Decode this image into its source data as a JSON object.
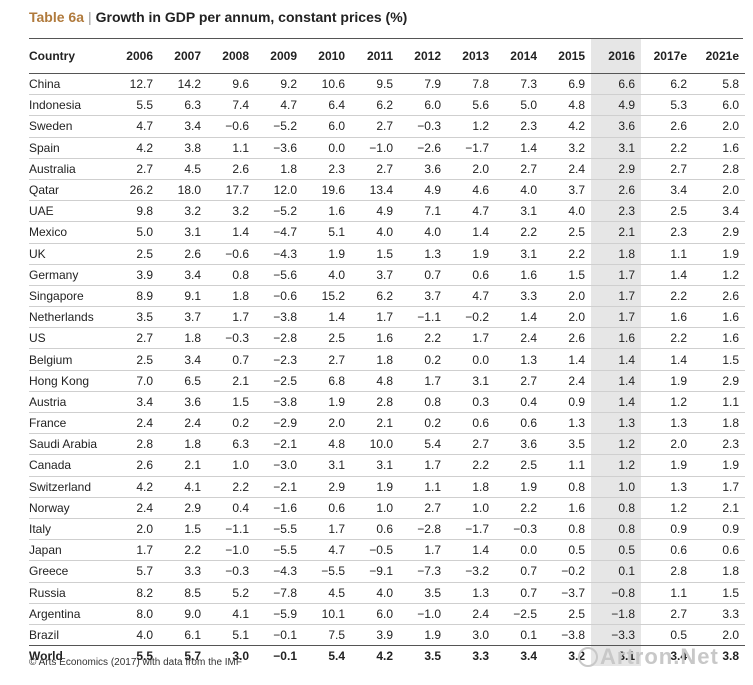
{
  "title": {
    "tag": "Table 6a",
    "sep": "|",
    "main": "Growth in GDP per annum, constant prices (%)"
  },
  "table": {
    "columns": [
      "Country",
      "2006",
      "2007",
      "2008",
      "2009",
      "2010",
      "2011",
      "2012",
      "2013",
      "2014",
      "2015",
      "2016",
      "2017e",
      "2021e"
    ],
    "highlight_column": "2016",
    "highlight_color": "#e6e6e6",
    "rows": [
      [
        "China",
        "12.7",
        "14.2",
        "9.6",
        "9.2",
        "10.6",
        "9.5",
        "7.9",
        "7.8",
        "7.3",
        "6.9",
        "6.6",
        "6.2",
        "5.8"
      ],
      [
        "Indonesia",
        "5.5",
        "6.3",
        "7.4",
        "4.7",
        "6.4",
        "6.2",
        "6.0",
        "5.6",
        "5.0",
        "4.8",
        "4.9",
        "5.3",
        "6.0"
      ],
      [
        "Sweden",
        "4.7",
        "3.4",
        "−0.6",
        "−5.2",
        "6.0",
        "2.7",
        "−0.3",
        "1.2",
        "2.3",
        "4.2",
        "3.6",
        "2.6",
        "2.0"
      ],
      [
        "Spain",
        "4.2",
        "3.8",
        "1.1",
        "−3.6",
        "0.0",
        "−1.0",
        "−2.6",
        "−1.7",
        "1.4",
        "3.2",
        "3.1",
        "2.2",
        "1.6"
      ],
      [
        "Australia",
        "2.7",
        "4.5",
        "2.6",
        "1.8",
        "2.3",
        "2.7",
        "3.6",
        "2.0",
        "2.7",
        "2.4",
        "2.9",
        "2.7",
        "2.8"
      ],
      [
        "Qatar",
        "26.2",
        "18.0",
        "17.7",
        "12.0",
        "19.6",
        "13.4",
        "4.9",
        "4.6",
        "4.0",
        "3.7",
        "2.6",
        "3.4",
        "2.0"
      ],
      [
        "UAE",
        "9.8",
        "3.2",
        "3.2",
        "−5.2",
        "1.6",
        "4.9",
        "7.1",
        "4.7",
        "3.1",
        "4.0",
        "2.3",
        "2.5",
        "3.4"
      ],
      [
        "Mexico",
        "5.0",
        "3.1",
        "1.4",
        "−4.7",
        "5.1",
        "4.0",
        "4.0",
        "1.4",
        "2.2",
        "2.5",
        "2.1",
        "2.3",
        "2.9"
      ],
      [
        "UK",
        "2.5",
        "2.6",
        "−0.6",
        "−4.3",
        "1.9",
        "1.5",
        "1.3",
        "1.9",
        "3.1",
        "2.2",
        "1.8",
        "1.1",
        "1.9"
      ],
      [
        "Germany",
        "3.9",
        "3.4",
        "0.8",
        "−5.6",
        "4.0",
        "3.7",
        "0.7",
        "0.6",
        "1.6",
        "1.5",
        "1.7",
        "1.4",
        "1.2"
      ],
      [
        "Singapore",
        "8.9",
        "9.1",
        "1.8",
        "−0.6",
        "15.2",
        "6.2",
        "3.7",
        "4.7",
        "3.3",
        "2.0",
        "1.7",
        "2.2",
        "2.6"
      ],
      [
        "Netherlands",
        "3.5",
        "3.7",
        "1.7",
        "−3.8",
        "1.4",
        "1.7",
        "−1.1",
        "−0.2",
        "1.4",
        "2.0",
        "1.7",
        "1.6",
        "1.6"
      ],
      [
        "US",
        "2.7",
        "1.8",
        "−0.3",
        "−2.8",
        "2.5",
        "1.6",
        "2.2",
        "1.7",
        "2.4",
        "2.6",
        "1.6",
        "2.2",
        "1.6"
      ],
      [
        "Belgium",
        "2.5",
        "3.4",
        "0.7",
        "−2.3",
        "2.7",
        "1.8",
        "0.2",
        "0.0",
        "1.3",
        "1.4",
        "1.4",
        "1.4",
        "1.5"
      ],
      [
        "Hong Kong",
        "7.0",
        "6.5",
        "2.1",
        "−2.5",
        "6.8",
        "4.8",
        "1.7",
        "3.1",
        "2.7",
        "2.4",
        "1.4",
        "1.9",
        "2.9"
      ],
      [
        "Austria",
        "3.4",
        "3.6",
        "1.5",
        "−3.8",
        "1.9",
        "2.8",
        "0.8",
        "0.3",
        "0.4",
        "0.9",
        "1.4",
        "1.2",
        "1.1"
      ],
      [
        "France",
        "2.4",
        "2.4",
        "0.2",
        "−2.9",
        "2.0",
        "2.1",
        "0.2",
        "0.6",
        "0.6",
        "1.3",
        "1.3",
        "1.3",
        "1.8"
      ],
      [
        "Saudi Arabia",
        "2.8",
        "1.8",
        "6.3",
        "−2.1",
        "4.8",
        "10.0",
        "5.4",
        "2.7",
        "3.6",
        "3.5",
        "1.2",
        "2.0",
        "2.3"
      ],
      [
        "Canada",
        "2.6",
        "2.1",
        "1.0",
        "−3.0",
        "3.1",
        "3.1",
        "1.7",
        "2.2",
        "2.5",
        "1.1",
        "1.2",
        "1.9",
        "1.9"
      ],
      [
        "Switzerland",
        "4.2",
        "4.1",
        "2.2",
        "−2.1",
        "2.9",
        "1.9",
        "1.1",
        "1.8",
        "1.9",
        "0.8",
        "1.0",
        "1.3",
        "1.7"
      ],
      [
        "Norway",
        "2.4",
        "2.9",
        "0.4",
        "−1.6",
        "0.6",
        "1.0",
        "2.7",
        "1.0",
        "2.2",
        "1.6",
        "0.8",
        "1.2",
        "2.1"
      ],
      [
        "Italy",
        "2.0",
        "1.5",
        "−1.1",
        "−5.5",
        "1.7",
        "0.6",
        "−2.8",
        "−1.7",
        "−0.3",
        "0.8",
        "0.8",
        "0.9",
        "0.9"
      ],
      [
        "Japan",
        "1.7",
        "2.2",
        "−1.0",
        "−5.5",
        "4.7",
        "−0.5",
        "1.7",
        "1.4",
        "0.0",
        "0.5",
        "0.5",
        "0.6",
        "0.6"
      ],
      [
        "Greece",
        "5.7",
        "3.3",
        "−0.3",
        "−4.3",
        "−5.5",
        "−9.1",
        "−7.3",
        "−3.2",
        "0.7",
        "−0.2",
        "0.1",
        "2.8",
        "1.8"
      ],
      [
        "Russia",
        "8.2",
        "8.5",
        "5.2",
        "−7.8",
        "4.5",
        "4.0",
        "3.5",
        "1.3",
        "0.7",
        "−3.7",
        "−0.8",
        "1.1",
        "1.5"
      ],
      [
        "Argentina",
        "8.0",
        "9.0",
        "4.1",
        "−5.9",
        "10.1",
        "6.0",
        "−1.0",
        "2.4",
        "−2.5",
        "2.5",
        "−1.8",
        "2.7",
        "3.3"
      ],
      [
        "Brazil",
        "4.0",
        "6.1",
        "5.1",
        "−0.1",
        "7.5",
        "3.9",
        "1.9",
        "3.0",
        "0.1",
        "−3.8",
        "−3.3",
        "0.5",
        "2.0"
      ]
    ],
    "total_row": [
      "World",
      "5.5",
      "5.7",
      "3.0",
      "−0.1",
      "5.4",
      "4.2",
      "3.5",
      "3.3",
      "3.4",
      "3.2",
      "3.1",
      "3.4",
      "3.8"
    ]
  },
  "footnote": "© Arts Economics (2017) with data from the IMF",
  "watermark": "Artron.Net",
  "colors": {
    "title_tag": "#b07a3c",
    "rule": "#555555",
    "row_rule": "#cfcfcf"
  }
}
